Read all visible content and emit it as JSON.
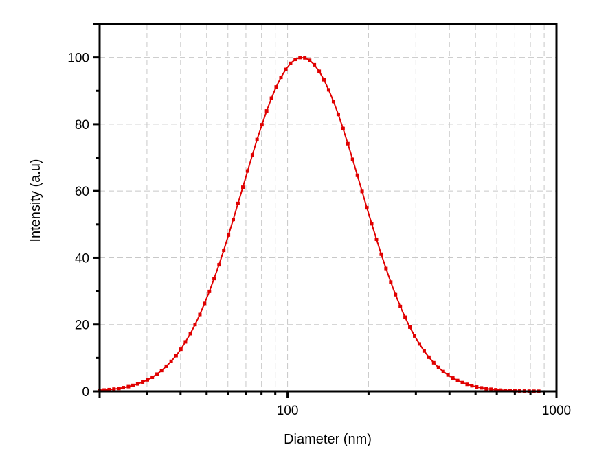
{
  "chart_data": {
    "type": "line",
    "title": "",
    "xlabel": "Diameter (nm)",
    "ylabel": "Intensity (a.u)",
    "xscale": "log",
    "xlim": [
      20,
      1000
    ],
    "ylim": [
      0,
      110
    ],
    "x_tick_labels": [
      "100",
      "1000"
    ],
    "x_major_ticks": [
      100,
      1000
    ],
    "x_minor_ticks": [
      30,
      40,
      50,
      60,
      70,
      80,
      90,
      200,
      300,
      400,
      500,
      600,
      700,
      800,
      900
    ],
    "y_tick_labels": [
      "0",
      "20",
      "40",
      "60",
      "80",
      "100"
    ],
    "y_major_ticks": [
      0,
      20,
      40,
      60,
      80,
      100
    ],
    "y_minor_ticks": [
      10,
      30,
      50,
      70,
      90
    ],
    "grid": true,
    "legend": null,
    "color": "#E00000",
    "marker": "square",
    "series": [
      {
        "name": "Intensity",
        "x": [
          20.0,
          20.8,
          21.7,
          22.6,
          23.6,
          24.5,
          25.6,
          26.6,
          27.7,
          28.9,
          30.1,
          31.4,
          32.7,
          34.0,
          35.4,
          36.9,
          38.5,
          40.1,
          41.7,
          43.5,
          45.3,
          47.2,
          49.1,
          51.2,
          53.3,
          55.6,
          57.9,
          60.3,
          62.8,
          65.4,
          68.2,
          71.0,
          74.0,
          77.0,
          80.3,
          83.6,
          87.1,
          90.7,
          94.5,
          98.5,
          102.6,
          106.8,
          111.3,
          115.9,
          120.8,
          125.8,
          131.1,
          136.5,
          142.2,
          148.2,
          154.4,
          160.8,
          167.5,
          174.5,
          181.8,
          189.3,
          197.2,
          205.5,
          214.1,
          223.0,
          232.3,
          242.0,
          252.0,
          262.6,
          273.5,
          284.9,
          296.8,
          309.2,
          322.1,
          335.5,
          349.5,
          364.1,
          379.3,
          395.1,
          411.6,
          428.8,
          446.7,
          465.3,
          484.7,
          505.0,
          526.0,
          548.0,
          570.9,
          594.7,
          619.4,
          645.3,
          672.2,
          700.2,
          729.4,
          759.9,
          791.6,
          824.6,
          859.0
        ],
        "y": [
          0.31,
          0.41,
          0.53,
          0.68,
          0.88,
          1.12,
          1.42,
          1.79,
          2.24,
          2.78,
          3.44,
          4.22,
          5.15,
          6.24,
          7.52,
          8.99,
          10.69,
          12.62,
          14.81,
          17.27,
          20.01,
          23.02,
          26.34,
          29.94,
          33.79,
          37.91,
          42.24,
          46.81,
          51.48,
          56.27,
          61.14,
          65.98,
          70.8,
          75.43,
          79.85,
          83.97,
          87.78,
          91.16,
          94.05,
          96.42,
          98.22,
          99.4,
          99.96,
          99.87,
          99.14,
          97.79,
          95.83,
          93.32,
          90.29,
          86.81,
          82.92,
          78.71,
          74.17,
          69.5,
          64.71,
          59.86,
          54.97,
          50.2,
          45.55,
          41.07,
          36.79,
          32.73,
          28.94,
          25.42,
          22.2,
          19.25,
          16.58,
          14.2,
          12.08,
          10.21,
          8.57,
          7.15,
          5.93,
          4.89,
          4.0,
          3.25,
          2.63,
          2.11,
          1.68,
          1.33,
          1.05,
          0.82,
          0.64,
          0.49,
          0.38,
          0.29,
          0.22,
          0.16,
          0.12,
          0.09,
          0.07,
          0.05,
          0.04
        ]
      }
    ]
  }
}
